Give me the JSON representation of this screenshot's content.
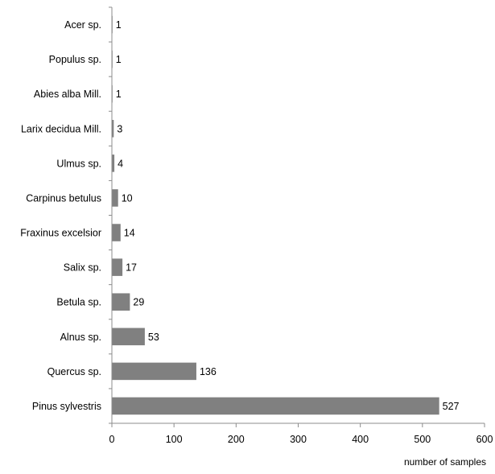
{
  "chart_data": {
    "type": "bar",
    "orientation": "horizontal",
    "categories": [
      "Acer sp.",
      "Populus sp.",
      "Abies alba Mill.",
      "Larix decidua Mill.",
      "Ulmus sp.",
      "Carpinus betulus",
      "Fraxinus excelsior",
      "Salix sp.",
      "Betula sp.",
      "Alnus sp.",
      "Quercus sp.",
      "Pinus sylvestris"
    ],
    "values": [
      1,
      1,
      1,
      3,
      4,
      10,
      14,
      17,
      29,
      53,
      136,
      527
    ],
    "data_labels": [
      "1",
      "1",
      "1",
      "3",
      "4",
      "10",
      "14",
      "17",
      "29",
      "53",
      "136",
      "527"
    ],
    "xlabel": "number of samples",
    "ylabel": "",
    "title": "",
    "xlim": [
      0,
      600
    ],
    "x_ticks": [
      0,
      100,
      200,
      300,
      400,
      500,
      600
    ],
    "x_tick_labels": [
      "0",
      "100",
      "200",
      "300",
      "400",
      "500",
      "600"
    ],
    "grid": false,
    "legend": "none",
    "colors": {
      "bar": "#808080",
      "axis": "#8c8c8c",
      "text": "#000000"
    }
  }
}
